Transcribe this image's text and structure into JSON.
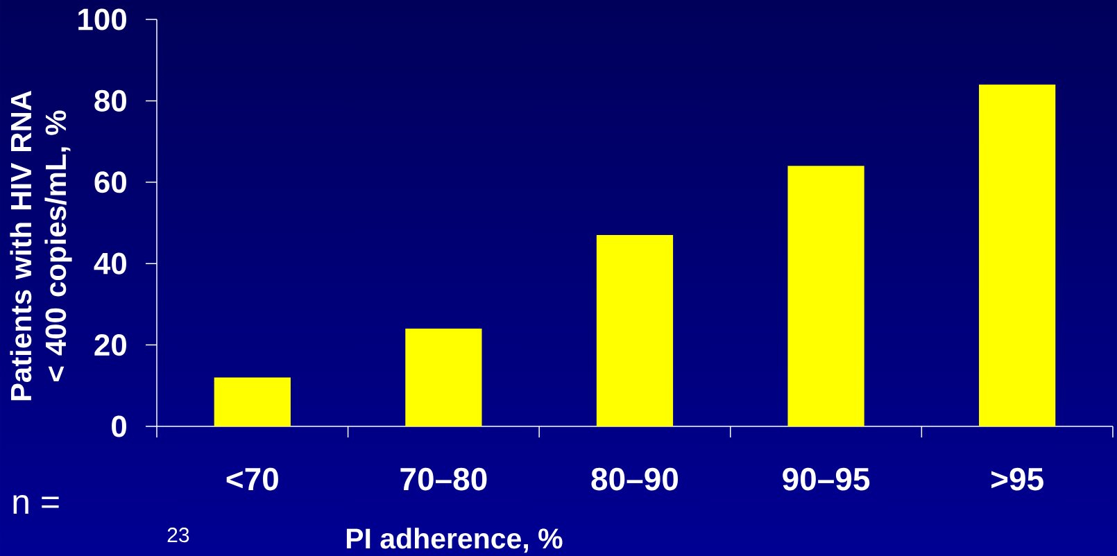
{
  "chart_data": {
    "type": "bar",
    "categories": [
      "<70",
      "70–80",
      "80–90",
      "90–95",
      ">95"
    ],
    "values": [
      12,
      24,
      47,
      64,
      84
    ],
    "color": "#ffff00",
    "xlabel": "PI adherence, %",
    "ylabel": "Patients with HIV RNA < 400 copies/mL, %",
    "ylim": [
      0,
      100
    ],
    "yticks": [
      0,
      20,
      40,
      60,
      80,
      100
    ],
    "annotations": [
      "n =",
      "23"
    ]
  }
}
